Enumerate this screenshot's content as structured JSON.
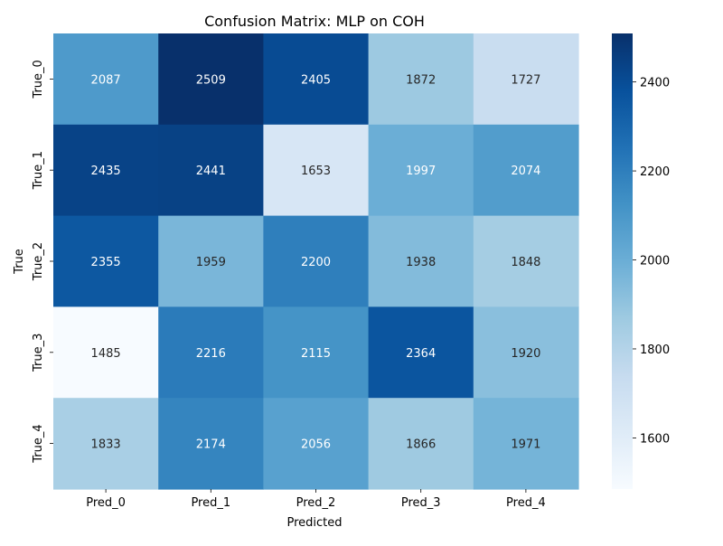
{
  "chart_data": {
    "type": "heatmap",
    "title": "Confusion Matrix: MLP on COH",
    "xlabel": "Predicted",
    "ylabel": "True",
    "x_categories": [
      "Pred_0",
      "Pred_1",
      "Pred_2",
      "Pred_3",
      "Pred_4"
    ],
    "y_categories": [
      "True_0",
      "True_1",
      "True_2",
      "True_3",
      "True_4"
    ],
    "values": [
      [
        2087,
        2509,
        2405,
        1872,
        1727
      ],
      [
        2435,
        2441,
        1653,
        1997,
        2074
      ],
      [
        2355,
        1959,
        2200,
        1938,
        1848
      ],
      [
        1485,
        2216,
        2115,
        2364,
        1920
      ],
      [
        1833,
        2174,
        2056,
        1866,
        1971
      ]
    ],
    "colormap": "Blues",
    "vmin": 1485,
    "vmax": 2509,
    "colorbar_ticks": [
      1600,
      1800,
      2000,
      2200,
      2400
    ],
    "grid": false
  }
}
